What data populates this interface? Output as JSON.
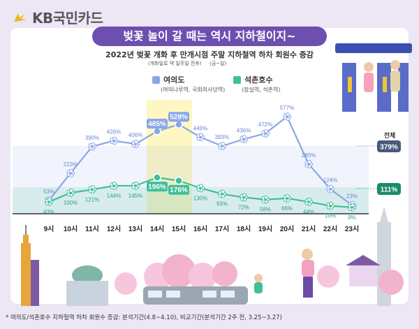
{
  "brand": {
    "name": "KB국민카드"
  },
  "headline": "벚꽃 놀이 갈 때는 역시 지하철이지~",
  "chart_data": {
    "type": "line",
    "title": "2022년 벚꽃 개화 후 만개시점 주말 지하철역 하차 회원수 증감",
    "note_period": "(개화일로 약 일주일 전후)",
    "note_days": "(금~일)",
    "categories": [
      "9시",
      "10시",
      "11시",
      "12시",
      "13시",
      "14시",
      "15시",
      "16시",
      "17시",
      "18시",
      "19시",
      "20시",
      "21시",
      "22시",
      "23시"
    ],
    "highlight": [
      "14시",
      "15시"
    ],
    "ylim": [
      0,
      600
    ],
    "series": [
      {
        "name": "여의도",
        "detail": "(여의나루역, 국회의사당역)",
        "color": "#8aa6e6",
        "values": [
          53,
          223,
          390,
          426,
          406,
          485,
          528,
          449,
          393,
          436,
          472,
          577,
          280,
          124,
          23
        ],
        "labels": [
          "53%",
          "223%",
          "390%",
          "426%",
          "406%",
          "485%",
          "528%",
          "449%",
          "393%",
          "436%",
          "472%",
          "577%",
          "280%",
          "124%",
          "23%"
        ]
      },
      {
        "name": "석촌호수",
        "detail": "(잠실역, 석촌역)",
        "color": "#3fbf99",
        "values": [
          43,
          100,
          121,
          144,
          145,
          196,
          176,
          130,
          93,
          72,
          58,
          66,
          44,
          19,
          9
        ],
        "labels": [
          "43%",
          "100%",
          "121%",
          "144%",
          "145%",
          "196%",
          "176%",
          "130%",
          "93%",
          "72%",
          "58%",
          "66%",
          "44%",
          "19%",
          "9%"
        ]
      }
    ],
    "totals": {
      "label": "전체",
      "여의도": "379%",
      "석촌호수": "111%"
    }
  },
  "footnote": "* 여의도/석촌호수 지하철역 하차 회원수 증감: 분석기간(4.8~4.10), 비교기간(분석기간 2주 전, 3.25~3.27)",
  "colors": {
    "accent": "#6d4fb0",
    "line_a": "#8aa6e6",
    "line_b": "#3fbf99",
    "highlight": "#fdf7c2",
    "blossom": "#f6c6dc"
  }
}
